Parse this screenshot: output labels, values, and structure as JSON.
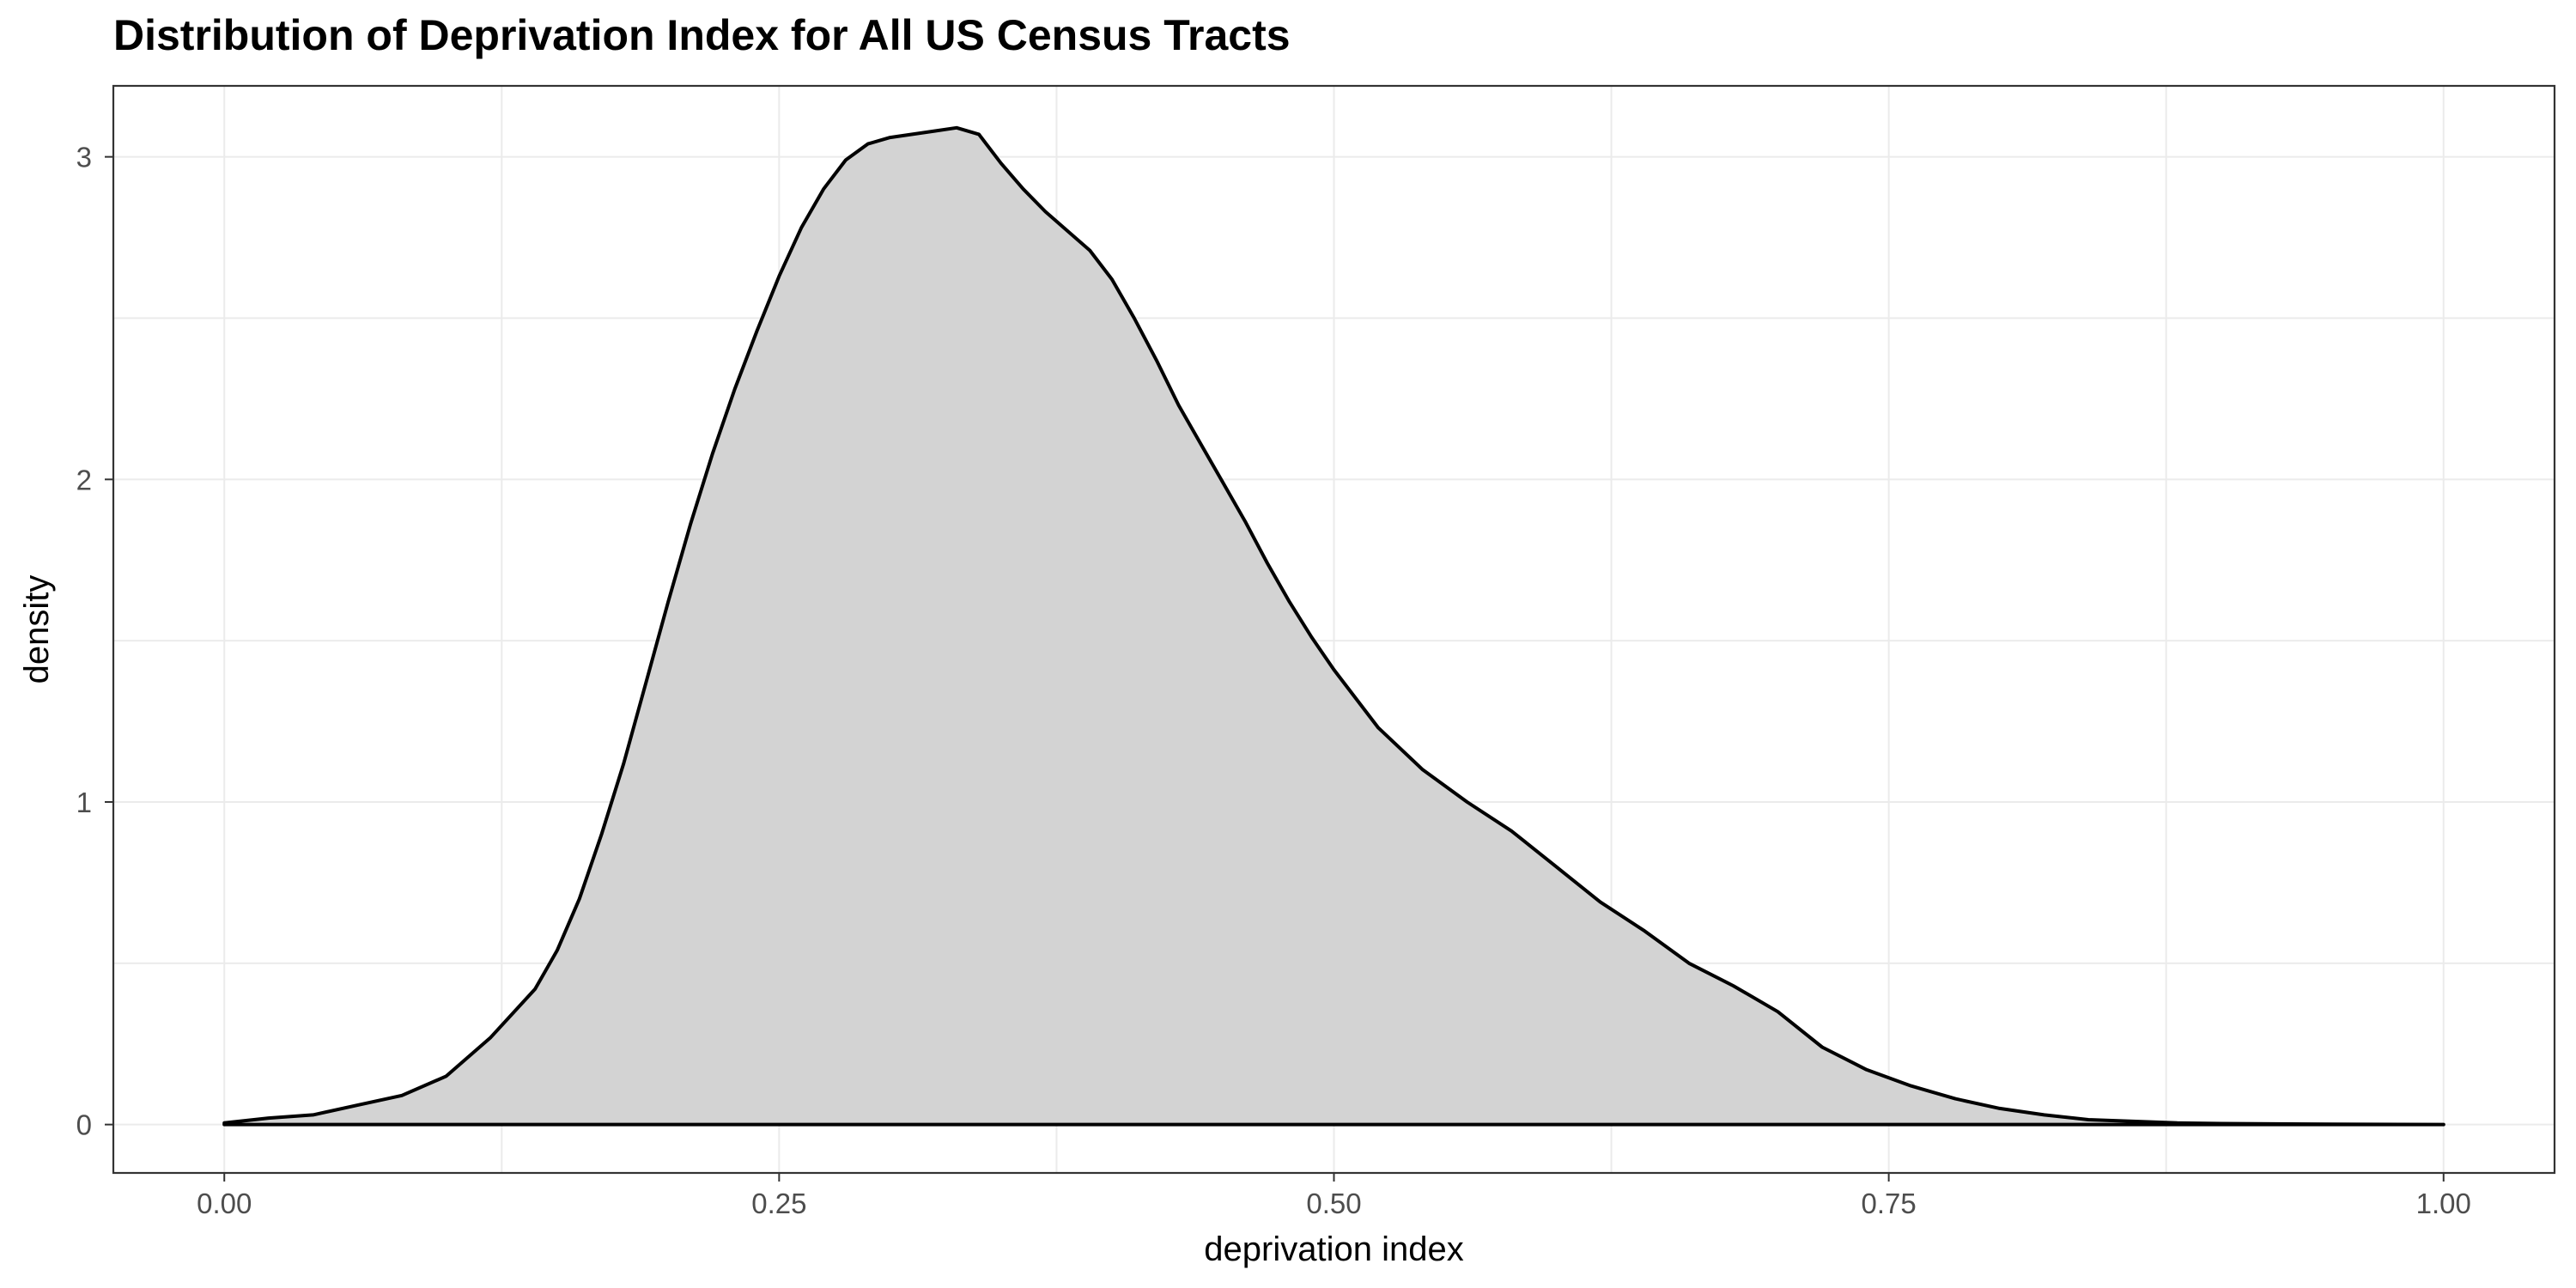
{
  "chart_data": {
    "type": "area",
    "title": "Distribution of Deprivation Index for All US Census Tracts",
    "xlabel": "deprivation index",
    "ylabel": "density",
    "xlim": [
      -0.05,
      1.05
    ],
    "ylim": [
      -0.15,
      3.22
    ],
    "grid": true,
    "legend": "none",
    "fill_color": "#d3d3d3",
    "line_color": "#000000",
    "x_ticks": [
      {
        "value": 0,
        "label": "0.00"
      },
      {
        "value": 0.25,
        "label": "0.25"
      },
      {
        "value": 0.5,
        "label": "0.50"
      },
      {
        "value": 0.75,
        "label": "0.75"
      },
      {
        "value": 1,
        "label": "1.00"
      }
    ],
    "y_ticks": [
      {
        "value": 0,
        "label": "0"
      },
      {
        "value": 1,
        "label": "1"
      },
      {
        "value": 2,
        "label": "2"
      },
      {
        "value": 3,
        "label": "3"
      }
    ],
    "x": [
      0.0,
      0.02,
      0.04,
      0.06,
      0.08,
      0.1,
      0.12,
      0.14,
      0.15,
      0.16,
      0.17,
      0.18,
      0.19,
      0.2,
      0.21,
      0.22,
      0.23,
      0.24,
      0.25,
      0.26,
      0.27,
      0.28,
      0.29,
      0.3,
      0.31,
      0.32,
      0.33,
      0.34,
      0.35,
      0.36,
      0.37,
      0.38,
      0.39,
      0.4,
      0.41,
      0.42,
      0.43,
      0.44,
      0.45,
      0.46,
      0.47,
      0.48,
      0.49,
      0.5,
      0.52,
      0.54,
      0.56,
      0.58,
      0.6,
      0.62,
      0.64,
      0.66,
      0.68,
      0.7,
      0.72,
      0.74,
      0.76,
      0.78,
      0.8,
      0.82,
      0.84,
      0.86,
      0.88,
      0.9,
      0.95,
      1.0
    ],
    "y": [
      0.005,
      0.02,
      0.03,
      0.06,
      0.09,
      0.15,
      0.27,
      0.42,
      0.54,
      0.7,
      0.9,
      1.12,
      1.37,
      1.62,
      1.86,
      2.08,
      2.28,
      2.46,
      2.63,
      2.78,
      2.9,
      2.99,
      3.04,
      3.06,
      3.07,
      3.08,
      3.09,
      3.07,
      2.98,
      2.9,
      2.83,
      2.77,
      2.71,
      2.62,
      2.5,
      2.37,
      2.23,
      2.11,
      1.99,
      1.87,
      1.74,
      1.62,
      1.51,
      1.41,
      1.23,
      1.1,
      1.0,
      0.91,
      0.8,
      0.69,
      0.6,
      0.5,
      0.43,
      0.35,
      0.24,
      0.17,
      0.12,
      0.08,
      0.05,
      0.03,
      0.015,
      0.01,
      0.005,
      0.003,
      0.001,
      0.0
    ]
  }
}
